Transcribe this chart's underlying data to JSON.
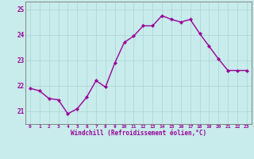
{
  "x": [
    0,
    1,
    2,
    3,
    4,
    5,
    6,
    7,
    8,
    9,
    10,
    11,
    12,
    13,
    14,
    15,
    16,
    17,
    18,
    19,
    20,
    21,
    22,
    23
  ],
  "y": [
    21.9,
    21.8,
    21.5,
    21.45,
    20.9,
    21.1,
    21.55,
    22.2,
    21.95,
    22.9,
    23.7,
    23.95,
    24.35,
    24.35,
    24.75,
    24.6,
    24.5,
    24.6,
    24.05,
    23.55,
    23.05,
    22.6,
    22.6,
    22.6
  ],
  "line_color": "#990099",
  "marker": "D",
  "marker_size": 2.0,
  "line_width": 1.0,
  "background_color": "#c8ebeb",
  "grid_color": "#b0d8d8",
  "xlabel": "Windchill (Refroidissement éolien,°C)",
  "xlabel_color": "#990099",
  "tick_color": "#990099",
  "ylim": [
    20.5,
    25.3
  ],
  "yticks": [
    21,
    22,
    23,
    24,
    25
  ],
  "xlim": [
    -0.5,
    23.5
  ],
  "spine_color": "#777777"
}
